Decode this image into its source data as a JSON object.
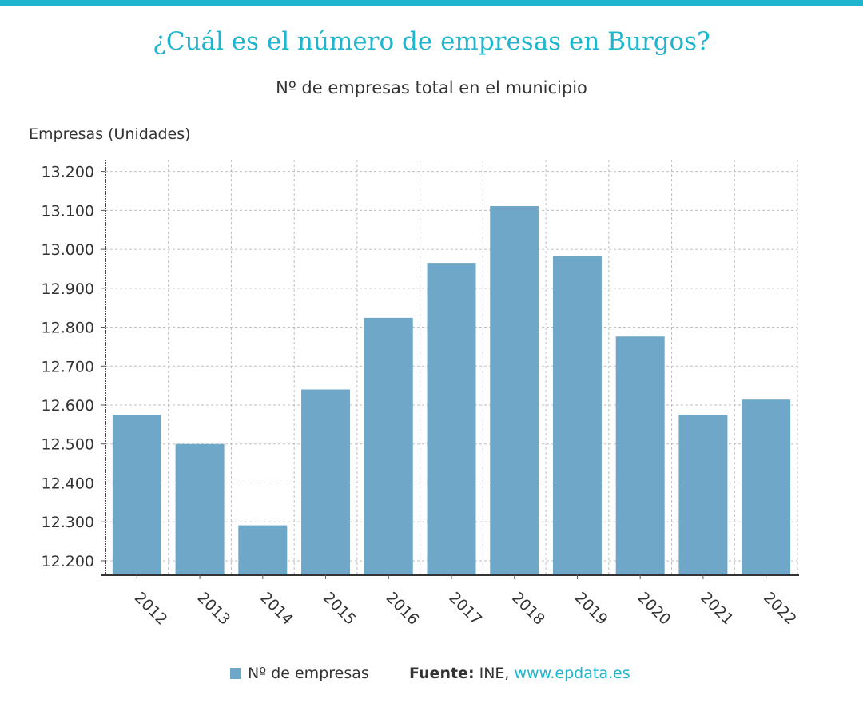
{
  "header": {
    "title": "¿Cuál es el número de empresas en Burgos?",
    "subtitle": "Nº de empresas total en el municipio"
  },
  "chart_data": {
    "type": "bar",
    "title": "¿Cuál es el número de empresas en Burgos?",
    "subtitle": "Nº de empresas total en el municipio",
    "ylabel": "Empresas (Unidades)",
    "xlabel": "",
    "categories": [
      "2012",
      "2013",
      "2014",
      "2015",
      "2016",
      "2017",
      "2018",
      "2019",
      "2020",
      "2021",
      "2022"
    ],
    "series": [
      {
        "name": "Nº de empresas",
        "color": "#6fa7c9",
        "values": [
          12574,
          12500,
          12291,
          12640,
          12824,
          12965,
          13111,
          12983,
          12776,
          12575,
          12614
        ]
      }
    ],
    "ylim": [
      12165,
      13230
    ],
    "yticks": [
      12200,
      12300,
      12400,
      12500,
      12600,
      12700,
      12800,
      12900,
      13000,
      13100,
      13200
    ],
    "ytick_labels": [
      "12.200",
      "12.300",
      "12.400",
      "12.500",
      "12.600",
      "12.700",
      "12.800",
      "12.900",
      "13.000",
      "13.100",
      "13.200"
    ],
    "grid": true,
    "legend_position": "bottom"
  },
  "legend": {
    "label": "Nº de empresas",
    "color": "#6fa7c9"
  },
  "source": {
    "label": "Fuente:",
    "text": " INE, ",
    "link": "www.epdata.es"
  }
}
